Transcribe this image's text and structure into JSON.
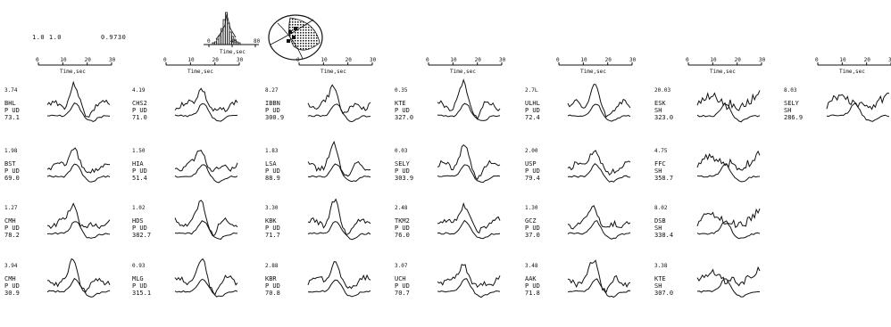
{
  "header": {
    "left_values": "1.0 1.0",
    "right_value": "0.9730",
    "histogram_axis_label": "Time,sec",
    "histogram_ticks": [
      "0",
      "40",
      "80"
    ]
  },
  "time_axis": {
    "label": "Time,sec",
    "ticks": [
      "0",
      "10",
      "20",
      "30"
    ]
  },
  "columns": [
    {
      "stations": [
        {
          "amp": "3.74",
          "code": "BHL",
          "comp": "P UD",
          "az": "73.1"
        },
        {
          "amp": "1.98",
          "code": "BST",
          "comp": "P UD",
          "az": "69.0"
        },
        {
          "amp": "1.27",
          "code": "CMH",
          "comp": "P UD",
          "az": "78.2"
        },
        {
          "amp": "3.94",
          "code": "CMH",
          "comp": "P UD",
          "az": "30.9"
        }
      ]
    },
    {
      "stations": [
        {
          "amp": "4.19",
          "code": "CHS2",
          "comp": "P UD",
          "az": "71.0"
        },
        {
          "amp": "1.50",
          "code": "HIA",
          "comp": "P UD",
          "az": "51.4"
        },
        {
          "amp": "1.02",
          "code": "HDS",
          "comp": "P UD",
          "az": "382.7"
        },
        {
          "amp": "0.93",
          "code": "MLG",
          "comp": "P UD",
          "az": "315.1"
        }
      ]
    },
    {
      "stations": [
        {
          "amp": "8.27",
          "code": "IBBN",
          "comp": "P UD",
          "az": "300.9"
        },
        {
          "amp": "1.83",
          "code": "LSA",
          "comp": "P UD",
          "az": "88.9"
        },
        {
          "amp": "3.30",
          "code": "KBK",
          "comp": "P UD",
          "az": "71.7"
        },
        {
          "amp": "2.88",
          "code": "KBR",
          "comp": "P UD",
          "az": "70.8"
        }
      ]
    },
    {
      "stations": [
        {
          "amp": "0.35",
          "code": "KTE",
          "comp": "P UD",
          "az": "327.0"
        },
        {
          "amp": "0.03",
          "code": "SELY",
          "comp": "P UD",
          "az": "303.9"
        },
        {
          "amp": "2.48",
          "code": "TKM2",
          "comp": "P UD",
          "az": "76.0"
        },
        {
          "amp": "3.07",
          "code": "UCH",
          "comp": "P UD",
          "az": "70.7"
        }
      ]
    },
    {
      "stations": [
        {
          "amp": "2.7L",
          "code": "ULHL",
          "comp": "P UD",
          "az": "72.4"
        },
        {
          "amp": "2.00",
          "code": "USP",
          "comp": "P UD",
          "az": "79.4"
        },
        {
          "amp": "1.30",
          "code": "GCZ",
          "comp": "P UD",
          "az": "37.0"
        },
        {
          "amp": "3.48",
          "code": "AAK",
          "comp": "P UD",
          "az": "71.8"
        }
      ]
    },
    {
      "stations": [
        {
          "amp": "20.03",
          "code": "ESK",
          "comp": "SH",
          "az": "323.0"
        },
        {
          "amp": "4.75",
          "code": "FFC",
          "comp": "SH",
          "az": "358.7"
        },
        {
          "amp": "8.02",
          "code": "DSB",
          "comp": "SH",
          "az": "338.4"
        },
        {
          "amp": "3.38",
          "code": "KTE",
          "comp": "SH",
          "az": "307.0"
        }
      ]
    },
    {
      "stations": [
        {
          "amp": "8.03",
          "code": "SELY",
          "comp": "SH",
          "az": "286.9"
        }
      ]
    }
  ]
}
